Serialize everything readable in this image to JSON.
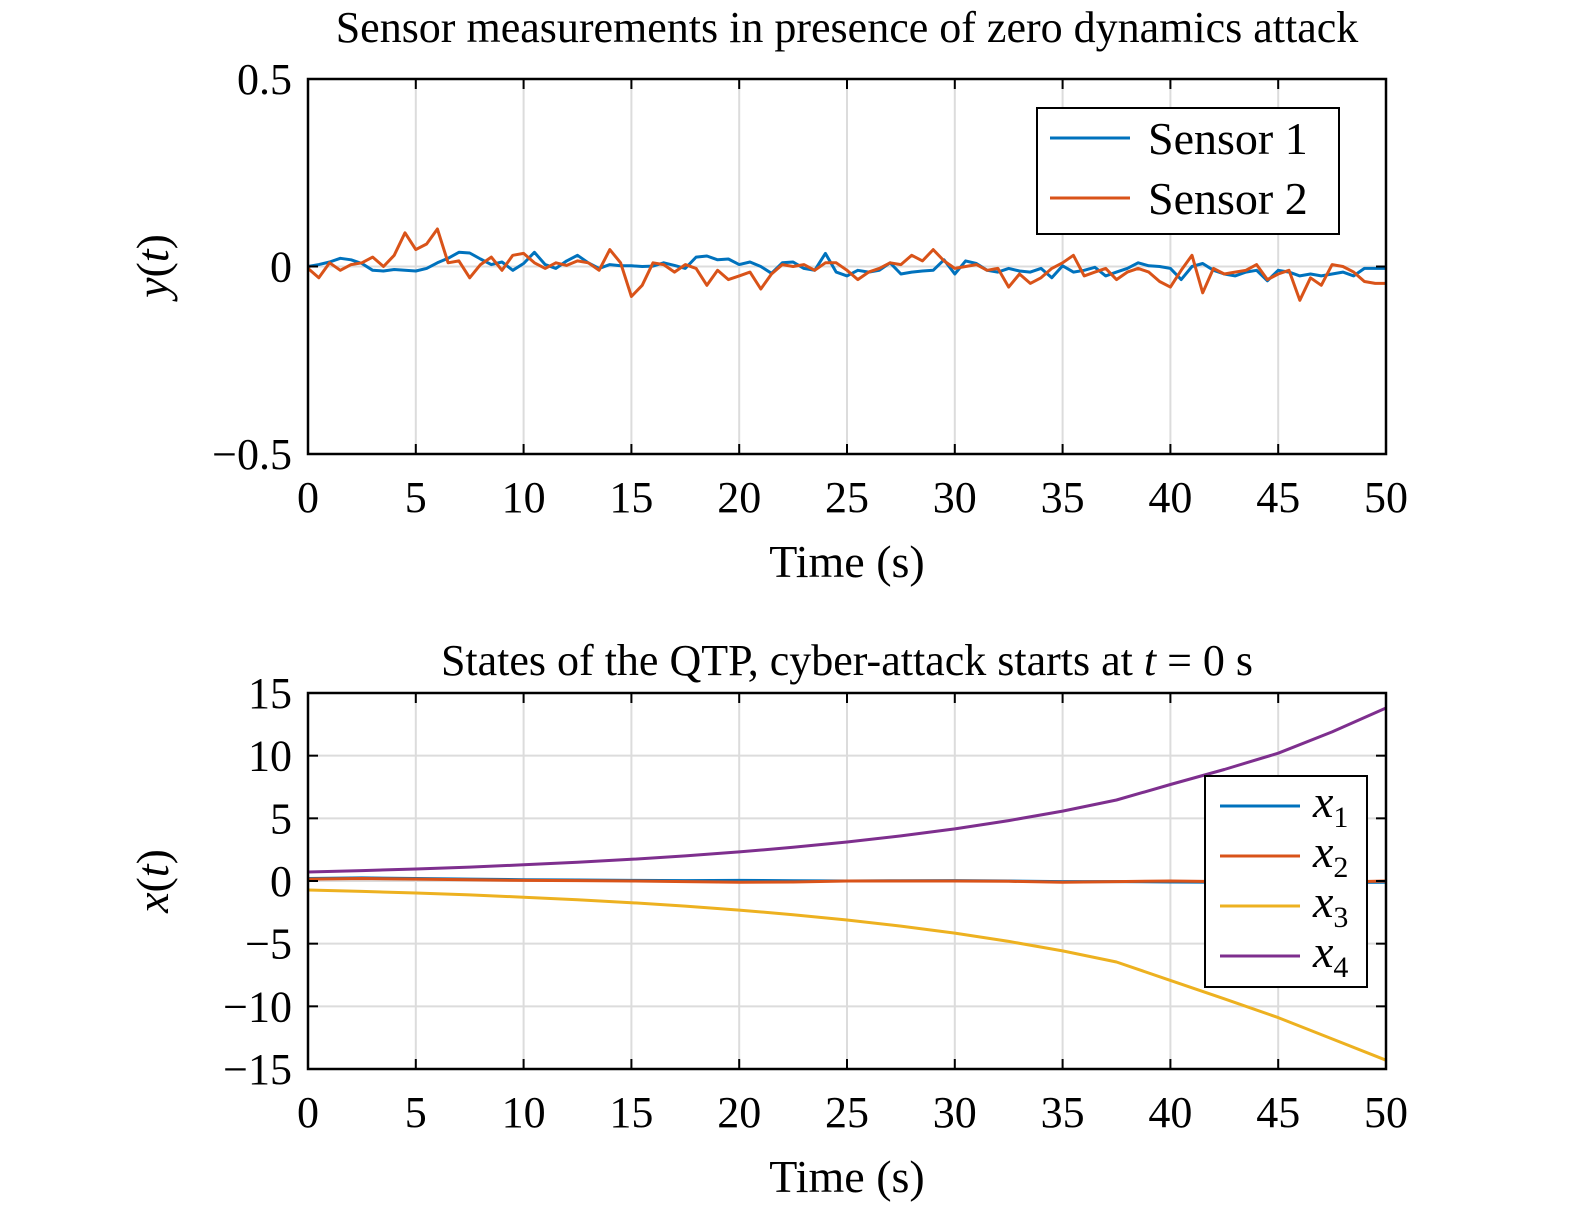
{
  "chart_data": [
    {
      "type": "line",
      "title": "Sensor measurements in presence of zero dynamics attack",
      "xlabel": "Time (s)",
      "ylabel": {
        "main": "y",
        "arg": "t"
      },
      "xlim": [
        0,
        50
      ],
      "ylim": [
        -0.5,
        0.5
      ],
      "xticks": [
        0,
        5,
        10,
        15,
        20,
        25,
        30,
        35,
        40,
        45,
        50
      ],
      "yticks": [
        {
          "value": 0.5,
          "label": "0.5"
        },
        {
          "value": 0,
          "label": "0"
        },
        {
          "value": -0.5,
          "label": "−0.5"
        }
      ],
      "grid": true,
      "legend_position": "top-right",
      "x": [
        0,
        0.5,
        1,
        1.5,
        2,
        2.5,
        3,
        3.5,
        4,
        4.5,
        5,
        5.5,
        6,
        6.5,
        7,
        7.5,
        8,
        8.5,
        9,
        9.5,
        10,
        10.5,
        11,
        11.5,
        12,
        12.5,
        13,
        13.5,
        14,
        14.5,
        15,
        15.5,
        16,
        16.5,
        17,
        17.5,
        18,
        18.5,
        19,
        19.5,
        20,
        20.5,
        21,
        21.5,
        22,
        22.5,
        23,
        23.5,
        24,
        24.5,
        25,
        25.5,
        26,
        26.5,
        27,
        27.5,
        28,
        28.5,
        29,
        29.5,
        30,
        30.5,
        31,
        31.5,
        32,
        32.5,
        33,
        33.5,
        34,
        34.5,
        35,
        35.5,
        36,
        36.5,
        37,
        37.5,
        38,
        38.5,
        39,
        39.5,
        40,
        40.5,
        41,
        41.5,
        42,
        42.5,
        43,
        43.5,
        44,
        44.5,
        45,
        45.5,
        46,
        46.5,
        47,
        47.5,
        48,
        48.5,
        49,
        49.5,
        50
      ],
      "series": [
        {
          "name": "Sensor 1",
          "color": "#0072BD",
          "values": [
            0,
            0.005,
            0.012,
            0.022,
            0.018,
            0.008,
            -0.01,
            -0.012,
            -0.008,
            -0.01,
            -0.012,
            -0.005,
            0.01,
            0.022,
            0.038,
            0.036,
            0.02,
            0.005,
            0.012,
            -0.01,
            0.008,
            0.038,
            0.005,
            -0.005,
            0.015,
            0.03,
            0.01,
            -0.005,
            0.005,
            0.002,
            0.002,
            0,
            0.001,
            0.01,
            0.003,
            -0.005,
            0.025,
            0.028,
            0.018,
            0.02,
            0.005,
            0.012,
            0,
            -0.018,
            0.01,
            0.012,
            -0.005,
            -0.01,
            0.035,
            -0.015,
            -0.025,
            -0.01,
            -0.015,
            -0.01,
            0.01,
            -0.02,
            -0.015,
            -0.012,
            -0.01,
            0.018,
            -0.02,
            0.015,
            0.008,
            -0.01,
            -0.015,
            -0.005,
            -0.012,
            -0.015,
            -0.005,
            -0.03,
            0.002,
            -0.015,
            -0.01,
            -0.002,
            -0.025,
            -0.015,
            -0.005,
            0.01,
            0.002,
            0,
            -0.005,
            -0.035,
            0,
            0.008,
            -0.01,
            -0.02,
            -0.025,
            -0.015,
            -0.01,
            -0.038,
            -0.01,
            -0.015,
            -0.025,
            -0.02,
            -0.025,
            -0.02,
            -0.015,
            -0.025,
            -0.005,
            -0.005,
            -0.005
          ]
        },
        {
          "name": "Sensor 2",
          "color": "#D95319",
          "values": [
            -0.005,
            -0.03,
            0.01,
            -0.01,
            0.005,
            0.01,
            0.025,
            0,
            0.03,
            0.09,
            0.045,
            0.06,
            0.1,
            0.01,
            0.015,
            -0.03,
            0.005,
            0.025,
            -0.01,
            0.03,
            0.035,
            0.01,
            -0.005,
            0.01,
            0.003,
            0.015,
            0.01,
            -0.01,
            0.045,
            0.01,
            -0.08,
            -0.05,
            0.01,
            0.005,
            -0.015,
            0.005,
            -0.005,
            -0.05,
            -0.01,
            -0.035,
            -0.025,
            -0.015,
            -0.06,
            -0.02,
            0.005,
            0,
            0.005,
            -0.01,
            0.01,
            0.01,
            -0.01,
            -0.035,
            -0.015,
            -0.005,
            0.01,
            0.005,
            0.03,
            0.015,
            0.045,
            0.015,
            -0.005,
            0,
            0.005,
            -0.01,
            -0.005,
            -0.055,
            -0.02,
            -0.045,
            -0.03,
            -0.005,
            0.01,
            0.03,
            -0.025,
            -0.015,
            -0.005,
            -0.035,
            -0.015,
            -0.005,
            -0.015,
            -0.04,
            -0.055,
            -0.01,
            0.03,
            -0.07,
            -0.005,
            -0.02,
            -0.015,
            -0.01,
            0.005,
            -0.035,
            -0.02,
            -0.01,
            -0.09,
            -0.03,
            -0.05,
            0.005,
            0,
            -0.015,
            -0.04,
            -0.045,
            -0.045
          ]
        }
      ]
    },
    {
      "type": "line",
      "title": {
        "before": "States of the QTP, cyber-attack starts at ",
        "var": "t",
        "after": " = 0 s"
      },
      "xlabel": "Time (s)",
      "ylabel": {
        "main": "x",
        "arg": "t"
      },
      "xlim": [
        0,
        50
      ],
      "ylim": [
        -15,
        15
      ],
      "xticks": [
        0,
        5,
        10,
        15,
        20,
        25,
        30,
        35,
        40,
        45,
        50
      ],
      "yticks": [
        {
          "value": 15,
          "label": "15"
        },
        {
          "value": 10,
          "label": "10"
        },
        {
          "value": 5,
          "label": "5"
        },
        {
          "value": 0,
          "label": "0"
        },
        {
          "value": -5,
          "label": "−5"
        },
        {
          "value": -10,
          "label": "−10"
        },
        {
          "value": -15,
          "label": "−15"
        }
      ],
      "grid": true,
      "legend_position": "right",
      "x": [
        0,
        2.5,
        5,
        7.5,
        10,
        12.5,
        15,
        17.5,
        20,
        22.5,
        25,
        27.5,
        30,
        32.5,
        35,
        37.5,
        40,
        42.5,
        45,
        47.5,
        50
      ],
      "series": [
        {
          "name": "x",
          "sub": "1",
          "color": "#0072BD",
          "values": [
            0.2,
            0.25,
            0.2,
            0.15,
            0.1,
            0.08,
            0.05,
            0.03,
            0.05,
            0.02,
            0,
            0.02,
            0.03,
            0,
            -0.05,
            -0.05,
            -0.08,
            -0.1,
            -0.1,
            -0.12,
            -0.1
          ]
        },
        {
          "name": "x",
          "sub": "2",
          "color": "#D95319",
          "values": [
            0.15,
            0.2,
            0.15,
            0.1,
            0.05,
            0.03,
            0,
            -0.05,
            -0.1,
            -0.08,
            0,
            0,
            0,
            -0.02,
            -0.1,
            -0.05,
            0,
            -0.05,
            -0.05,
            -0.1,
            0
          ]
        },
        {
          "name": "x",
          "sub": "3",
          "color": "#EDB120",
          "values": [
            -0.72,
            -0.83,
            -0.96,
            -1.11,
            -1.29,
            -1.49,
            -1.73,
            -2.0,
            -2.32,
            -2.69,
            -3.11,
            -3.6,
            -4.16,
            -4.82,
            -5.58,
            -6.46,
            -7.93,
            -9.4,
            -10.9,
            -12.6,
            -14.3
          ]
        },
        {
          "name": "x",
          "sub": "4",
          "color": "#7E2F8E",
          "values": [
            0.72,
            0.83,
            0.96,
            1.11,
            1.29,
            1.49,
            1.73,
            2.0,
            2.32,
            2.69,
            3.11,
            3.6,
            4.16,
            4.82,
            5.58,
            6.46,
            7.7,
            8.9,
            10.2,
            11.9,
            13.8
          ]
        }
      ]
    }
  ]
}
